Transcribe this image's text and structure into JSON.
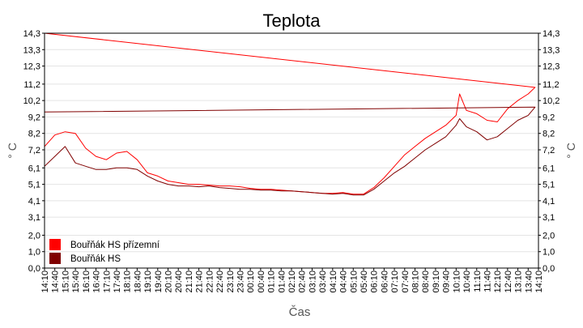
{
  "chart_data": {
    "type": "line",
    "title": "Teplota",
    "xlabel": "Čas",
    "ylabel": "° C",
    "ylim": [
      0,
      14.3
    ],
    "y_ticks": [
      "0,0",
      "1,0",
      "2,0",
      "3,1",
      "4,1",
      "5,1",
      "6,1",
      "7,2",
      "8,2",
      "9,2",
      "10,2",
      "11,2",
      "12,3",
      "13,3",
      "14,3"
    ],
    "x_ticks": [
      "14:10",
      "14:40",
      "15:10",
      "15:40",
      "16:10",
      "16:40",
      "17:10",
      "17:40",
      "18:10",
      "18:40",
      "19:10",
      "19:40",
      "20:10",
      "20:40",
      "21:10",
      "21:40",
      "22:10",
      "22:40",
      "23:10",
      "23:40",
      "00:10",
      "00:40",
      "01:10",
      "01:40",
      "02:10",
      "02:40",
      "03:10",
      "03:40",
      "04:10",
      "04:40",
      "05:10",
      "05:40",
      "06:10",
      "06:40",
      "07:10",
      "07:40",
      "08:10",
      "08:40",
      "09:10",
      "09:40",
      "10:10",
      "10:40",
      "11:10",
      "11:40",
      "12:10",
      "12:40",
      "13:10",
      "13:40",
      "14:10"
    ],
    "grid": "horizontal",
    "legend_position": "bottom-left",
    "series": [
      {
        "name": "Bouřňák HS přízemní",
        "color": "#ff0000",
        "x": [
          "14:10",
          "14:40",
          "15:10",
          "15:40",
          "16:10",
          "16:40",
          "17:10",
          "17:40",
          "18:10",
          "18:40",
          "19:10",
          "19:40",
          "20:10",
          "20:40",
          "21:10",
          "21:40",
          "22:10",
          "22:40",
          "23:10",
          "23:40",
          "00:10",
          "00:40",
          "01:10",
          "01:40",
          "02:10",
          "02:40",
          "03:10",
          "03:40",
          "04:10",
          "04:40",
          "05:10",
          "05:40",
          "06:10",
          "06:40",
          "07:10",
          "07:40",
          "08:10",
          "08:40",
          "09:10",
          "09:40",
          "10:10",
          "10:20",
          "10:40",
          "11:10",
          "11:40",
          "12:10",
          "12:40",
          "13:10",
          "13:40",
          "14:00",
          "14:10"
        ],
        "values": [
          7.4,
          8.1,
          8.3,
          8.2,
          7.3,
          6.8,
          6.6,
          7.0,
          7.1,
          6.6,
          5.8,
          5.6,
          5.3,
          5.2,
          5.1,
          5.1,
          5.05,
          5.0,
          5.0,
          4.95,
          4.85,
          4.8,
          4.8,
          4.75,
          4.7,
          4.65,
          4.6,
          4.55,
          4.55,
          4.6,
          4.5,
          4.5,
          4.9,
          5.5,
          6.2,
          6.9,
          7.4,
          7.9,
          8.3,
          8.7,
          9.3,
          10.6,
          9.6,
          9.4,
          9.0,
          8.9,
          9.7,
          10.2,
          10.6,
          11.0,
          14.3
        ]
      },
      {
        "name": "Bouřňák HS",
        "color": "#800000",
        "x": [
          "14:10",
          "14:40",
          "15:10",
          "15:40",
          "16:10",
          "16:40",
          "17:10",
          "17:40",
          "18:10",
          "18:40",
          "19:10",
          "19:40",
          "20:10",
          "20:40",
          "21:10",
          "21:40",
          "22:10",
          "22:40",
          "23:10",
          "23:40",
          "00:10",
          "00:40",
          "01:10",
          "01:40",
          "02:10",
          "02:40",
          "03:10",
          "03:40",
          "04:10",
          "04:40",
          "05:10",
          "05:40",
          "06:10",
          "06:40",
          "07:10",
          "07:40",
          "08:10",
          "08:40",
          "09:10",
          "09:40",
          "10:10",
          "10:20",
          "10:40",
          "11:10",
          "11:40",
          "12:10",
          "12:40",
          "13:10",
          "13:40",
          "14:00",
          "14:10"
        ],
        "values": [
          6.2,
          6.8,
          7.4,
          6.4,
          6.2,
          6.0,
          6.0,
          6.1,
          6.1,
          6.0,
          5.6,
          5.3,
          5.1,
          5.0,
          5.0,
          4.95,
          5.0,
          4.9,
          4.85,
          4.8,
          4.8,
          4.75,
          4.75,
          4.7,
          4.7,
          4.65,
          4.6,
          4.55,
          4.5,
          4.55,
          4.45,
          4.45,
          4.8,
          5.3,
          5.8,
          6.2,
          6.7,
          7.2,
          7.6,
          8.0,
          8.7,
          9.1,
          8.6,
          8.3,
          7.8,
          8.0,
          8.5,
          9.0,
          9.3,
          9.8,
          9.5
        ]
      }
    ]
  }
}
